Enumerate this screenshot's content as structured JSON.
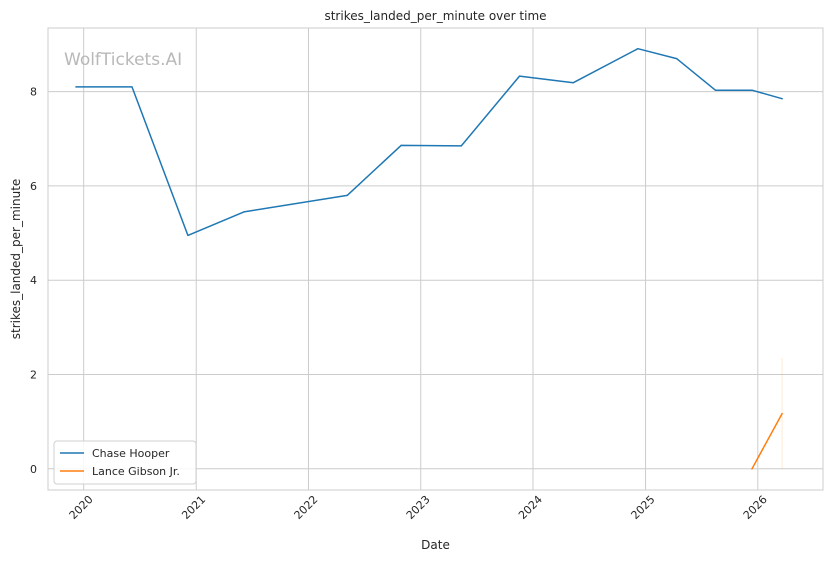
{
  "watermark": "WolfTickets.AI",
  "chart_data": {
    "type": "line",
    "title": "strikes_landed_per_minute over time",
    "xlabel": "Date",
    "ylabel": "strikes_landed_per_minute",
    "x_tick_labels": [
      "2020",
      "2021",
      "2022",
      "2023",
      "2024",
      "2025",
      "2026"
    ],
    "y_ticks": [
      0,
      2,
      4,
      6,
      8
    ],
    "xlim": [
      "2019-09-07",
      "2026-08-01"
    ],
    "ylim": [
      -0.45,
      9.35
    ],
    "grid": true,
    "legend_position": "lower left",
    "series": [
      {
        "name": "Chase Hooper",
        "color": "#1f77b4",
        "points": [
          {
            "x": "2019-12-07",
            "y": 8.1
          },
          {
            "x": "2020-06-06",
            "y": 8.1
          },
          {
            "x": "2020-12-05",
            "y": 4.95
          },
          {
            "x": "2021-06-05",
            "y": 5.45
          },
          {
            "x": "2022-05-07",
            "y": 5.8
          },
          {
            "x": "2022-10-29",
            "y": 6.86
          },
          {
            "x": "2023-05-13",
            "y": 6.85
          },
          {
            "x": "2023-11-18",
            "y": 8.33
          },
          {
            "x": "2024-05-11",
            "y": 8.19
          },
          {
            "x": "2024-12-07",
            "y": 8.91
          },
          {
            "x": "2025-04-12",
            "y": 8.7
          },
          {
            "x": "2025-08-16",
            "y": 8.03
          },
          {
            "x": "2025-12-13",
            "y": 8.03
          },
          {
            "x": "2026-03-21",
            "y": 7.85
          }
        ]
      },
      {
        "name": "Lance Gibson Jr.",
        "color": "#ff7f0e",
        "points": [
          {
            "x": "2025-12-13",
            "y": 0.0
          },
          {
            "x": "2026-03-21",
            "y": 1.17
          }
        ]
      }
    ]
  }
}
